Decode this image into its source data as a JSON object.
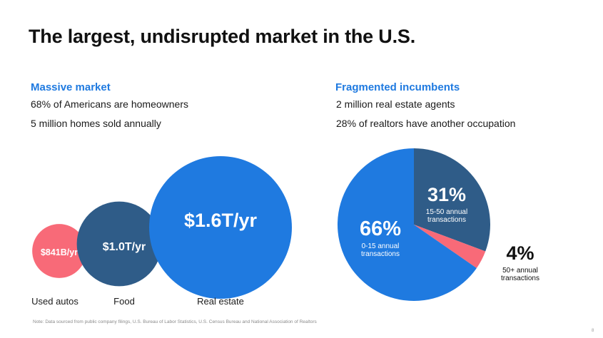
{
  "title": "The largest, undisrupted market in the U.S.",
  "left": {
    "heading": "Massive market",
    "facts": [
      "68% of Americans are homeowners",
      "5 million homes sold annually"
    ]
  },
  "right": {
    "heading": "Fragmented incumbents",
    "facts": [
      "2 million real estate agents",
      "28% of realtors have another occupation"
    ]
  },
  "chart_data": [
    {
      "type": "bubble",
      "title": "",
      "unit": "$/yr",
      "categories": [
        "Used autos",
        "Food",
        "Real estate"
      ],
      "values": [
        0.841,
        1.0,
        1.6
      ],
      "value_labels": [
        "$841B/yr",
        "$1.0T/yr",
        "$1.6T/yr"
      ],
      "colors": [
        "#f86a78",
        "#2f5c88",
        "#1f7ae0"
      ]
    },
    {
      "type": "pie",
      "title": "",
      "slices": [
        {
          "value": 31,
          "label": "31%",
          "desc_line1": "15-50 annual",
          "desc_line2": "transactions",
          "color": "#2f5c88"
        },
        {
          "value": 4,
          "label": "4%",
          "desc_line1": "50+ annual",
          "desc_line2": "transactions",
          "color": "#f86a78"
        },
        {
          "value": 66,
          "label": "66%",
          "desc_line1": "0-15 annual",
          "desc_line2": "transactions",
          "color": "#1f7ae0"
        }
      ]
    }
  ],
  "footnote": "Note: Data sourced from public company filings, U.S. Bureau of Labor Statistics, U.S. Census Bureau and National Association of Realtors",
  "page_number": "8"
}
